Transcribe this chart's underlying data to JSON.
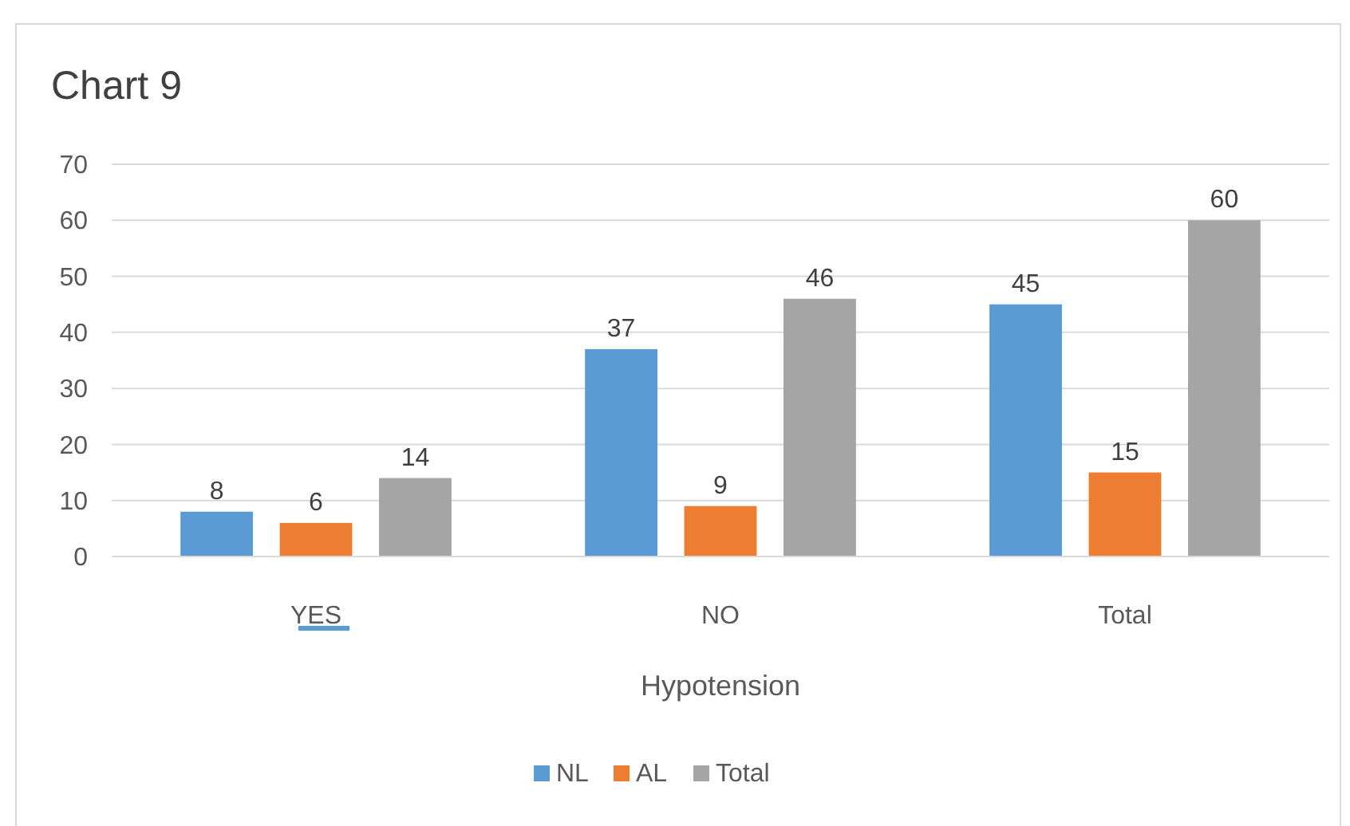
{
  "chart_data": {
    "type": "bar",
    "title": "Chart 9",
    "xlabel": "Hypotension",
    "categories": [
      "YES",
      "NO",
      "Total"
    ],
    "series": [
      {
        "name": "NL",
        "color": "#5b9bd5",
        "values": [
          8,
          37,
          45
        ]
      },
      {
        "name": "AL",
        "color": "#ed7d31",
        "values": [
          6,
          9,
          15
        ]
      },
      {
        "name": "Total",
        "color": "#a5a5a5",
        "values": [
          14,
          46,
          60
        ]
      }
    ],
    "ylim": [
      0,
      70
    ],
    "yticks": [
      0,
      10,
      20,
      30,
      40,
      50,
      60,
      70
    ],
    "grid": "y",
    "legend": "bottom",
    "data_labels": true
  }
}
